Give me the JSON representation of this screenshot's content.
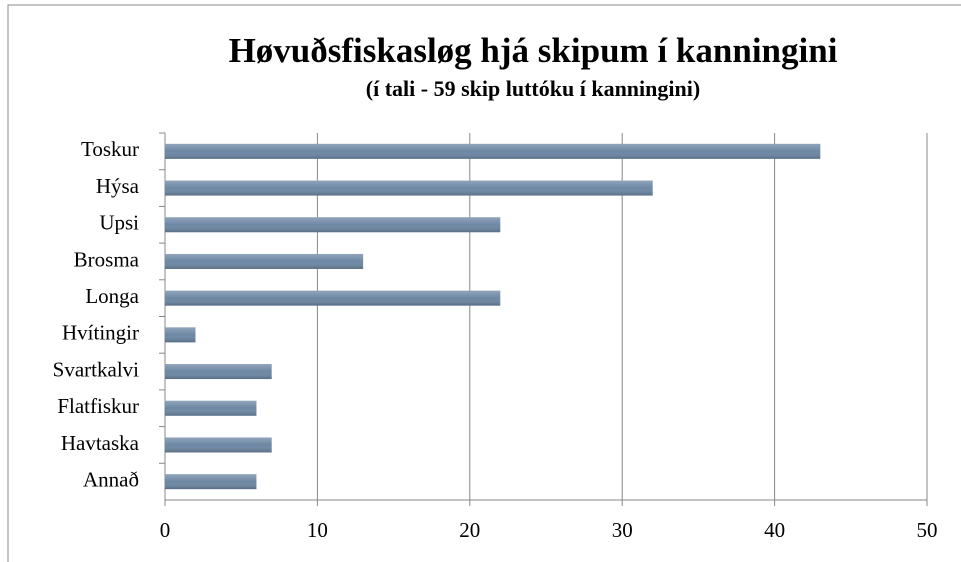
{
  "chart_data": {
    "type": "bar",
    "orientation": "horizontal",
    "title": "Høvuðsfiskasløg hjá skipum í kanningini",
    "subtitle": "(í tali - 59 skip luttóku í kanningini)",
    "categories": [
      "Toskur",
      "Hýsa",
      "Upsi",
      "Brosma",
      "Longa",
      "Hvítingir",
      "Svartkalvi",
      "Flatfiskur",
      "Havtaska",
      "Annað"
    ],
    "values": [
      43,
      32,
      22,
      13,
      22,
      2,
      7,
      6,
      7,
      6
    ],
    "color": "#6d87a4",
    "xlim": [
      0,
      50
    ],
    "xticks": [
      0,
      10,
      20,
      30,
      40,
      50
    ],
    "grid": true
  }
}
